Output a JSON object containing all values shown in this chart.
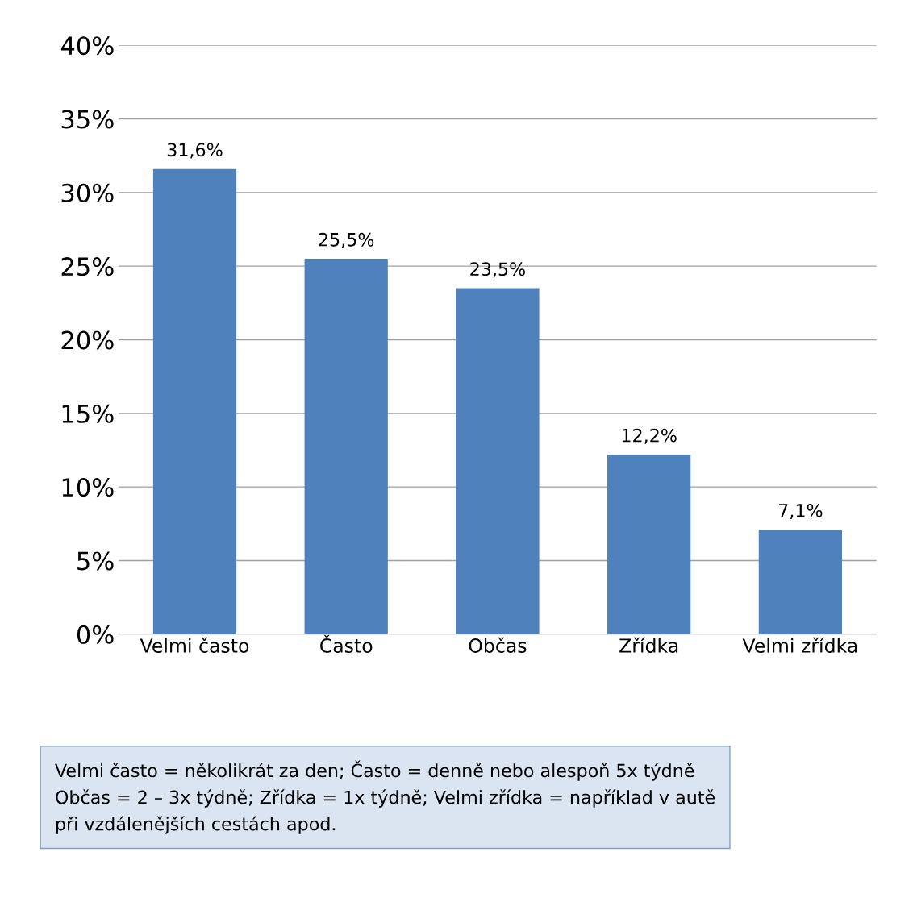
{
  "chart_data": {
    "type": "bar",
    "categories": [
      "Velmi často",
      "Často",
      "Občas",
      "Zřídka",
      "Velmi zřídka"
    ],
    "values": [
      31.6,
      25.5,
      23.5,
      12.2,
      7.1
    ],
    "value_labels": [
      "31,6%",
      "25,5%",
      "23,5%",
      "12,2%",
      "7,1%"
    ],
    "color": "#4f81bd",
    "ylim": [
      0,
      40
    ],
    "yticks": [
      {
        "value": 0,
        "label": "0%"
      },
      {
        "value": 5,
        "label": "5%"
      },
      {
        "value": 10,
        "label": "10%"
      },
      {
        "value": 15,
        "label": "15%"
      },
      {
        "value": 20,
        "label": "20%"
      },
      {
        "value": 25,
        "label": "25%"
      },
      {
        "value": 30,
        "label": "30%"
      },
      {
        "value": 35,
        "label": "35%"
      },
      {
        "value": 40,
        "label": "40%"
      }
    ],
    "grid": "y",
    "annotations": [
      "Velmi často = několikrát za den; Často = denně nebo alespoň 5x týdně\nObčas = 2 – 3x týdně; Zřídka = 1x týdně; Velmi zřídka = například v autě\npři vzdálenějších cestách apod."
    ]
  }
}
